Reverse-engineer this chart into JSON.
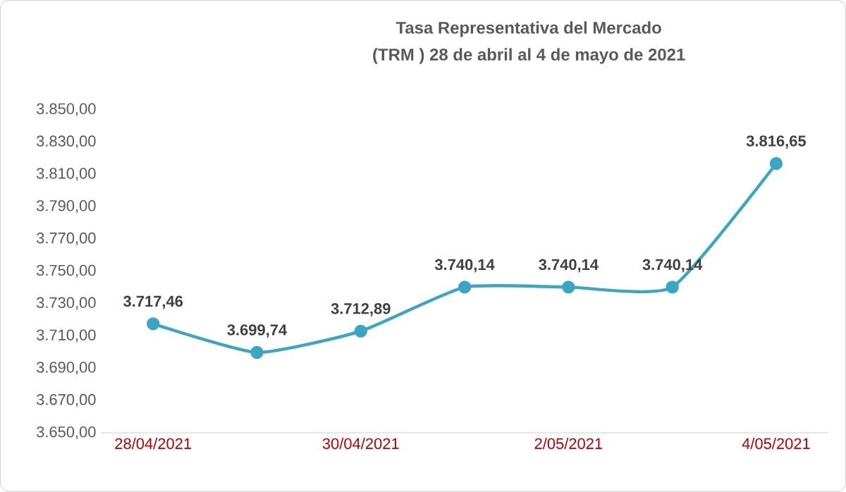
{
  "chart_data": {
    "type": "line",
    "title": "Tasa Representativa del Mercado",
    "subtitle": "(TRM )  28 de abril  al 4 de mayo de 2021",
    "categories": [
      "28/04/2021",
      null,
      "30/04/2021",
      null,
      "2/05/2021",
      null,
      "4/05/2021"
    ],
    "series": [
      {
        "color": "#3aa6c4",
        "values": [
          3717.46,
          3699.74,
          3712.89,
          3740.14,
          3740.14,
          3740.14,
          3816.65
        ],
        "value_labels": [
          "3.717,46",
          "3.699,74",
          "3.712,89",
          "3.740,14",
          "3.740,14",
          "3.740,14",
          "3.816,65"
        ]
      }
    ],
    "ylim": [
      3650,
      3850
    ],
    "yticks": [
      {
        "value": 3650,
        "label": "3.650,00"
      },
      {
        "value": 3670,
        "label": "3.670,00"
      },
      {
        "value": 3690,
        "label": "3.690,00"
      },
      {
        "value": 3710,
        "label": "3.710,00"
      },
      {
        "value": 3730,
        "label": "3.730,00"
      },
      {
        "value": 3750,
        "label": "3.750,00"
      },
      {
        "value": 3770,
        "label": "3.770,00"
      },
      {
        "value": 3790,
        "label": "3.790,00"
      },
      {
        "value": 3810,
        "label": "3.810,00"
      },
      {
        "value": 3830,
        "label": "3.830,00"
      },
      {
        "value": 3850,
        "label": "3.850,00"
      }
    ],
    "marker": "circle",
    "line_style": "solid",
    "grid": false
  }
}
